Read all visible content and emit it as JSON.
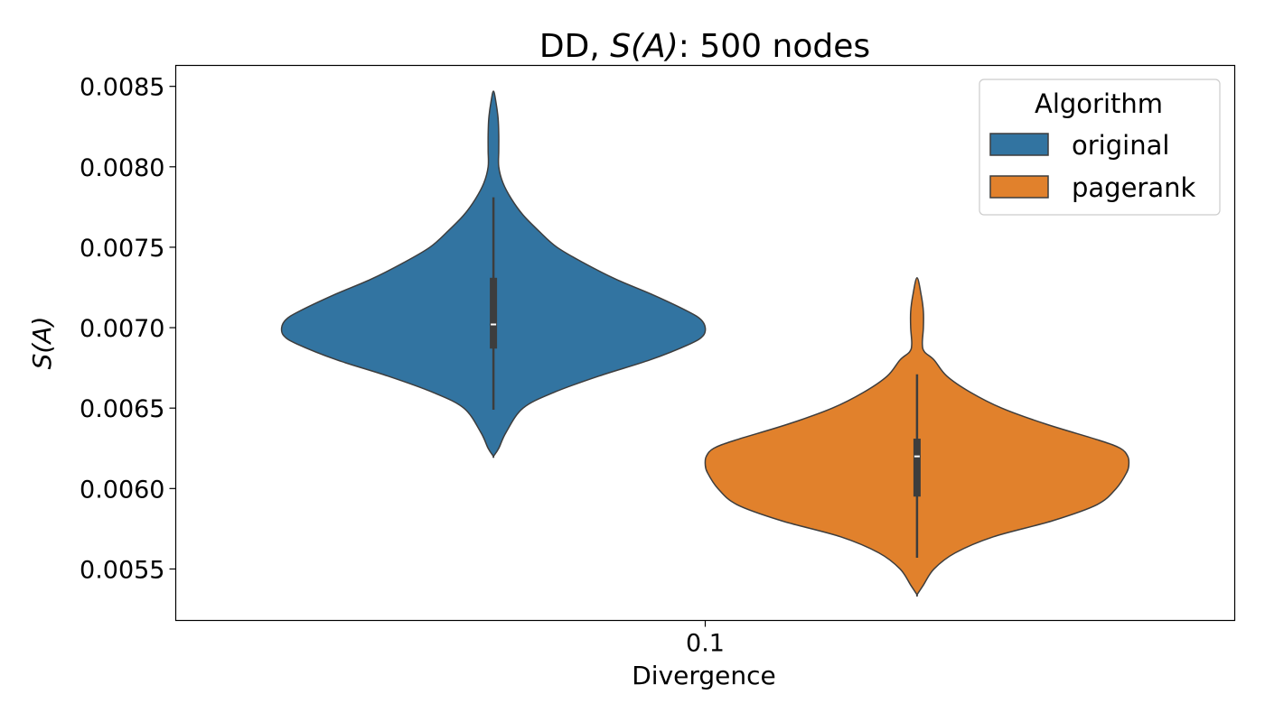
{
  "chart_data": {
    "type": "violin",
    "title": "DD, S(A): 500 nodes",
    "title_prefix": "DD, ",
    "title_math": "S(A)",
    "title_suffix": ": 500 nodes",
    "xlabel": "Divergence",
    "ylabel": "S(A)",
    "categories": [
      "0.1"
    ],
    "ylim": [
      0.00518,
      0.00863
    ],
    "yticks": [
      0.0055,
      0.006,
      0.0065,
      0.007,
      0.0075,
      0.008,
      0.0085
    ],
    "ytick_labels": [
      "0.0055",
      "0.0060",
      "0.0065",
      "0.0070",
      "0.0075",
      "0.0080",
      "0.0085"
    ],
    "legend": {
      "title": "Algorithm",
      "position": "top-right",
      "entries": [
        "original",
        "pagerank"
      ]
    },
    "series": [
      {
        "name": "original",
        "color": "#3274a1",
        "min": 0.0062,
        "max": 0.00847,
        "q1": 0.00687,
        "median": 0.00702,
        "q3": 0.00731,
        "whisker_low": 0.00649,
        "whisker_high": 0.00781,
        "density_y": [
          0.0062,
          0.00625,
          0.00635,
          0.0065,
          0.0066,
          0.0067,
          0.0068,
          0.0069,
          0.00695,
          0.007,
          0.00705,
          0.0071,
          0.0072,
          0.0073,
          0.0074,
          0.0075,
          0.0076,
          0.0077,
          0.0078,
          0.0079,
          0.008,
          0.0081,
          0.0082,
          0.0083,
          0.0084,
          0.00847
        ],
        "density_w": [
          0.0,
          0.025,
          0.06,
          0.14,
          0.29,
          0.5,
          0.74,
          0.93,
          0.99,
          1.0,
          0.98,
          0.92,
          0.76,
          0.58,
          0.43,
          0.3,
          0.215,
          0.14,
          0.085,
          0.045,
          0.025,
          0.025,
          0.025,
          0.022,
          0.012,
          0.0
        ]
      },
      {
        "name": "pagerank",
        "color": "#e1812c",
        "min": 0.00534,
        "max": 0.00731,
        "q1": 0.00595,
        "median": 0.0062,
        "q3": 0.00631,
        "whisker_low": 0.00557,
        "whisker_high": 0.00671,
        "density_y": [
          0.00534,
          0.0054,
          0.0055,
          0.0056,
          0.0057,
          0.0058,
          0.0059,
          0.006,
          0.0061,
          0.00615,
          0.0062,
          0.00625,
          0.0063,
          0.0064,
          0.0065,
          0.0066,
          0.0067,
          0.0068,
          0.00685,
          0.0069,
          0.007,
          0.0071,
          0.0072,
          0.00731
        ],
        "density_w": [
          0.0,
          0.03,
          0.08,
          0.18,
          0.36,
          0.64,
          0.85,
          0.94,
          0.99,
          1.0,
          0.995,
          0.96,
          0.86,
          0.61,
          0.4,
          0.25,
          0.14,
          0.08,
          0.035,
          0.025,
          0.03,
          0.03,
          0.02,
          0.0
        ]
      }
    ]
  }
}
